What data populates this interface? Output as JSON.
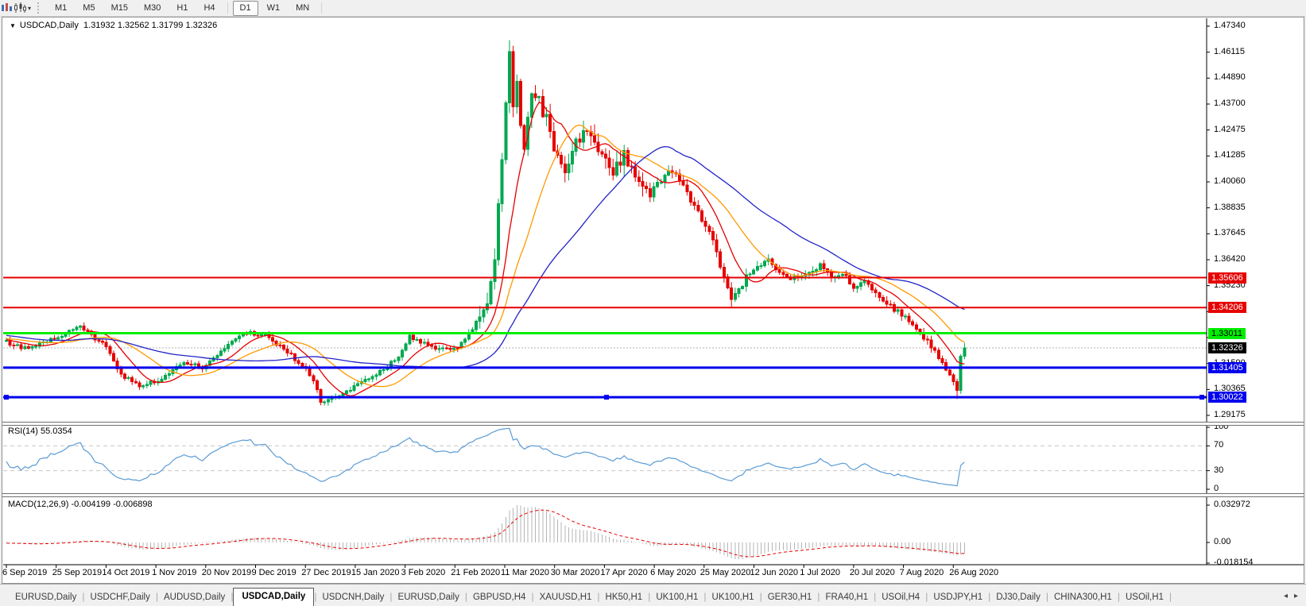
{
  "icons": {
    "collapse_triangle": "▼",
    "toolbar_caret": "▾",
    "tab_scroll_left": "◂",
    "tab_scroll_right": "▸"
  },
  "toolbar": {
    "timeframes": [
      {
        "label": "M1",
        "active": false,
        "separator_after": false
      },
      {
        "label": "M5",
        "active": false,
        "separator_after": false
      },
      {
        "label": "M15",
        "active": false,
        "separator_after": false
      },
      {
        "label": "M30",
        "active": false,
        "separator_after": false
      },
      {
        "label": "H1",
        "active": false,
        "separator_after": false
      },
      {
        "label": "H4",
        "active": false,
        "separator_after": true
      },
      {
        "label": "D1",
        "active": true,
        "separator_after": false
      },
      {
        "label": "W1",
        "active": false,
        "separator_after": false
      },
      {
        "label": "MN",
        "active": false,
        "separator_after": true
      }
    ]
  },
  "chart": {
    "symbol_timeframe": "USDCAD,Daily",
    "ohlc_line": "1.31932 1.32562 1.31799 1.32326"
  },
  "price_axis": {
    "ticks": [
      "1.47340",
      "1.46115",
      "1.44890",
      "1.43700",
      "1.42475",
      "1.41285",
      "1.40060",
      "1.38835",
      "1.37645",
      "1.36420",
      "1.35230",
      "1.34005",
      "1.32780",
      "1.31590",
      "1.30365",
      "1.29175"
    ]
  },
  "current_price": {
    "label": "1.32326",
    "value": 1.32326,
    "badge_bg": "#000000",
    "badge_fg": "#ffffff"
  },
  "hlines": [
    {
      "label": "1.35606",
      "value": 1.35606,
      "color": "#e60000",
      "thickness": 2,
      "badge_fg": "#ffffff",
      "selected": false
    },
    {
      "label": "1.34206",
      "value": 1.34206,
      "color": "#e60000",
      "thickness": 2,
      "badge_fg": "#ffffff",
      "selected": false
    },
    {
      "label": "1.33011",
      "value": 1.33011,
      "color": "#00ee00",
      "thickness": 3,
      "badge_fg": "#000000",
      "selected": false
    },
    {
      "label": "1.31405",
      "value": 1.31405,
      "color": "#0000ee",
      "thickness": 3,
      "badge_fg": "#ffffff",
      "selected": false
    },
    {
      "label": "1.30022",
      "value": 1.30022,
      "color": "#0000ee",
      "thickness": 3,
      "badge_fg": "#ffffff",
      "selected": true
    }
  ],
  "rsi_panel": {
    "label": "RSI(14) 55.0354",
    "last_value": 55.0354,
    "levels": [
      {
        "label": "100",
        "value": 100
      },
      {
        "label": "70",
        "value": 70
      },
      {
        "label": "30",
        "value": 30
      },
      {
        "label": "0",
        "value": 0
      }
    ],
    "dashed_levels": [
      70,
      30
    ],
    "line_color": "#5b9bd5"
  },
  "macd_panel": {
    "label": "MACD(12,26,9) -0.004199 -0.006898",
    "macd_value": -0.004199,
    "signal_value": -0.006898,
    "scale": [
      {
        "label": "0.032972",
        "value": 0.032972
      },
      {
        "label": "0.00",
        "value": 0
      },
      {
        "label": "-0.018154",
        "value": -0.018154
      }
    ],
    "histogram_color": "#b4b4b4",
    "signal_color": "#e60000"
  },
  "date_axis": [
    "6 Sep 2019",
    "25 Sep 2019",
    "14 Oct 2019",
    "1 Nov 2019",
    "20 Nov 2019",
    "9 Dec 2019",
    "27 Dec 2019",
    "15 Jan 2020",
    "3 Feb 2020",
    "21 Feb 2020",
    "11 Mar 2020",
    "30 Mar 2020",
    "17 Apr 2020",
    "6 May 2020",
    "25 May 2020",
    "12 Jun 2020",
    "1 Jul 2020",
    "20 Jul 2020",
    "7 Aug 2020",
    "26 Aug 2020"
  ],
  "tabs": [
    {
      "label": "EURUSD,Daily",
      "active": false
    },
    {
      "label": "USDCHF,Daily",
      "active": false
    },
    {
      "label": "AUDUSD,Daily",
      "active": false
    },
    {
      "label": "USDCAD,Daily",
      "active": true
    },
    {
      "label": "USDCNH,Daily",
      "active": false
    },
    {
      "label": "EURUSD,Daily",
      "active": false
    },
    {
      "label": "GBPUSD,H4",
      "active": false
    },
    {
      "label": "XAUUSD,H1",
      "active": false
    },
    {
      "label": "HK50,H1",
      "active": false
    },
    {
      "label": "UK100,H1",
      "active": false
    },
    {
      "label": "UK100,H1",
      "active": false
    },
    {
      "label": "GER30,H1",
      "active": false
    },
    {
      "label": "FRA40,H1",
      "active": false
    },
    {
      "label": "USOil,H4",
      "active": false
    },
    {
      "label": "USDJPY,H1",
      "active": false
    },
    {
      "label": "DJ30,Daily",
      "active": false
    },
    {
      "label": "CHINA300,H1",
      "active": false
    },
    {
      "label": "USOil,H1",
      "active": false
    }
  ],
  "chart_data": {
    "type": "candlestick",
    "symbol": "USDCAD",
    "timeframe": "Daily",
    "current_ohlc": {
      "open": 1.31932,
      "high": 1.32562,
      "low": 1.31799,
      "close": 1.32326
    },
    "price_range_visible": {
      "min": 1.29175,
      "max": 1.4734
    },
    "x_tick_dates": [
      "6 Sep 2019",
      "25 Sep 2019",
      "14 Oct 2019",
      "1 Nov 2019",
      "20 Nov 2019",
      "9 Dec 2019",
      "27 Dec 2019",
      "15 Jan 2020",
      "3 Feb 2020",
      "21 Feb 2020",
      "11 Mar 2020",
      "30 Mar 2020",
      "17 Apr 2020",
      "6 May 2020",
      "25 May 2020",
      "12 Jun 2020",
      "1 Jul 2020",
      "20 Jul 2020",
      "7 Aug 2020",
      "26 Aug 2020"
    ],
    "num_candles": 260,
    "pre_candles": 60,
    "close_anchors": [
      [
        -60,
        1.33
      ],
      [
        -40,
        1.3345
      ],
      [
        -25,
        1.3265
      ],
      [
        -10,
        1.3285
      ],
      [
        0,
        1.326
      ],
      [
        6,
        1.3225
      ],
      [
        13,
        1.328
      ],
      [
        20,
        1.333
      ],
      [
        27,
        1.324
      ],
      [
        31,
        1.311
      ],
      [
        36,
        1.305
      ],
      [
        42,
        1.309
      ],
      [
        48,
        1.317
      ],
      [
        53,
        1.314
      ],
      [
        59,
        1.323
      ],
      [
        65,
        1.3305
      ],
      [
        70,
        1.329
      ],
      [
        75,
        1.323
      ],
      [
        80,
        1.315
      ],
      [
        83,
        1.3085
      ],
      [
        85,
        1.2975
      ],
      [
        88,
        1.3
      ],
      [
        94,
        1.305
      ],
      [
        100,
        1.3105
      ],
      [
        106,
        1.319
      ],
      [
        109,
        1.329
      ],
      [
        113,
        1.325
      ],
      [
        118,
        1.3225
      ],
      [
        122,
        1.3235
      ],
      [
        126,
        1.332
      ],
      [
        128,
        1.339
      ],
      [
        130,
        1.342
      ],
      [
        132,
        1.367
      ],
      [
        134,
        1.41
      ],
      [
        136,
        1.462
      ],
      [
        137,
        1.436
      ],
      [
        138,
        1.447
      ],
      [
        139,
        1.428
      ],
      [
        140,
        1.415
      ],
      [
        142,
        1.443
      ],
      [
        144,
        1.438
      ],
      [
        146,
        1.43
      ],
      [
        149,
        1.412
      ],
      [
        151,
        1.403
      ],
      [
        154,
        1.418
      ],
      [
        157,
        1.425
      ],
      [
        161,
        1.415
      ],
      [
        164,
        1.406
      ],
      [
        167,
        1.413
      ],
      [
        170,
        1.401
      ],
      [
        174,
        1.395
      ],
      [
        177,
        1.402
      ],
      [
        180,
        1.406
      ],
      [
        183,
        1.398
      ],
      [
        186,
        1.39
      ],
      [
        190,
        1.377
      ],
      [
        192,
        1.368
      ],
      [
        194,
        1.356
      ],
      [
        196,
        1.3455
      ],
      [
        198,
        1.35
      ],
      [
        200,
        1.356
      ],
      [
        204,
        1.362
      ],
      [
        206,
        1.3645
      ],
      [
        209,
        1.358
      ],
      [
        212,
        1.3555
      ],
      [
        216,
        1.3575
      ],
      [
        220,
        1.3615
      ],
      [
        223,
        1.356
      ],
      [
        226,
        1.3585
      ],
      [
        229,
        1.352
      ],
      [
        232,
        1.3555
      ],
      [
        235,
        1.348
      ],
      [
        238,
        1.344
      ],
      [
        241,
        1.34
      ],
      [
        243,
        1.338
      ],
      [
        246,
        1.331
      ],
      [
        249,
        1.3265
      ],
      [
        252,
        1.319
      ],
      [
        254,
        1.313
      ],
      [
        256,
        1.3075
      ],
      [
        257,
        1.3035
      ],
      [
        258,
        1.31932
      ],
      [
        259,
        1.32326
      ]
    ],
    "forced_candles": {
      "136": {
        "high": 1.4669
      },
      "196": {
        "low": 1.342
      },
      "257": {
        "low": 1.2994
      },
      "259": {
        "open": 1.31932,
        "high": 1.32562,
        "low": 1.31799,
        "close": 1.32326
      }
    },
    "colors": {
      "up": "#00a84f",
      "down": "#e60000"
    },
    "moving_averages": [
      {
        "period": 10,
        "color": "#e60000"
      },
      {
        "period": 21,
        "color": "#ff9a00"
      },
      {
        "period": 45,
        "color": "#2323c8"
      }
    ],
    "indicators": [
      {
        "name": "RSI",
        "period": 14,
        "last": 55.0354
      },
      {
        "name": "MACD",
        "fast": 12,
        "slow": 26,
        "signal": 9,
        "last_macd": -0.004199,
        "last_signal": -0.006898
      }
    ]
  }
}
